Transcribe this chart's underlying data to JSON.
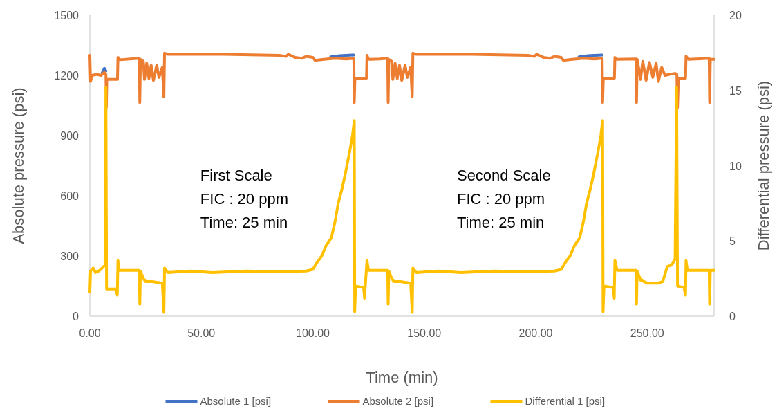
{
  "chart_data": {
    "type": "line",
    "xlabel": "Time (min)",
    "ylabel": "Absolute pressure (psi)",
    "y2label": "Differential pressure (psi)",
    "xlim": [
      0,
      280
    ],
    "xticks": [
      {
        "value": 0,
        "label": "0.00"
      },
      {
        "value": 50,
        "label": "50.00"
      },
      {
        "value": 100,
        "label": "100.00"
      },
      {
        "value": 150,
        "label": "150.00"
      },
      {
        "value": 200,
        "label": "200.00"
      },
      {
        "value": 250,
        "label": "250.00"
      }
    ],
    "ylim": [
      0,
      1500
    ],
    "yticks": [
      0,
      300,
      600,
      900,
      1200,
      1500
    ],
    "y2lim": [
      0,
      20
    ],
    "y2ticks": [
      0,
      5,
      10,
      15,
      20
    ],
    "grid": false,
    "legend": "bottom",
    "marker": "none",
    "line_style": "solid",
    "annotations": [
      "First Scale\nFIC : 20 ppm\nTime: 25 min",
      "Second Scale\nFIC : 20 ppm\nTime: 25 min"
    ],
    "series": [
      {
        "name": "Absolute 1 [psi]",
        "color": "#4472c4",
        "x": [
          5.5,
          6.5,
          7.2,
          8,
          108,
          112,
          115,
          118.4,
          120,
          219.4,
          223.4,
          226.4,
          229.8
        ],
        "values": [
          1212,
          1235,
          1222,
          null,
          1292,
          1298,
          1300,
          1302,
          null,
          1292,
          1298,
          1300,
          1302
        ]
      },
      {
        "name": "Absolute 2 [psi]",
        "color": "#ed7d31",
        "x": [
          0,
          0.3,
          1,
          3,
          5,
          6.5,
          7.2,
          7.4,
          7.6,
          12.4,
          12.6,
          13.5,
          22.2,
          22.4,
          22.7,
          24,
          24.5,
          25.5,
          26.5,
          27.5,
          28.5,
          30,
          31,
          32.5,
          33.2,
          33.5,
          35,
          60,
          85,
          88,
          89,
          92,
          95,
          97,
          100,
          101,
          105,
          110,
          115,
          118.4,
          118.6,
          118.9,
          124.1,
          124.3,
          125,
          126,
          130,
          133.6,
          133.8,
          134.1,
          135.4,
          135.9,
          136.9,
          137.9,
          138.9,
          139.9,
          141.4,
          142.4,
          143.9,
          144.6,
          144.9,
          146.4,
          171.4,
          196.4,
          199.4,
          200.4,
          203.4,
          206.4,
          208.4,
          211.4,
          212.4,
          216.4,
          221.4,
          226.4,
          229.8,
          230,
          230.3,
          235.3,
          235.5,
          236.5,
          245,
          245.2,
          245.5,
          247,
          248,
          249.5,
          251,
          252.5,
          254,
          255,
          256.5,
          258,
          260,
          262.5,
          263.3,
          263.6,
          264,
          267.2,
          267.4,
          268.5,
          277.8,
          278,
          278.3,
          280
        ],
        "values": [
          1300,
          1170,
          1200,
          1205,
          1200,
          1215,
          1205,
          1040,
          1180,
          1180,
          1290,
          1278,
          1285,
          1065,
          1280,
          1270,
          1180,
          1260,
          1185,
          1250,
          1175,
          1250,
          1190,
          1240,
          1093,
          1311,
          1305,
          1305,
          1300,
          1295,
          1305,
          1290,
          1285,
          1295,
          1290,
          1275,
          1280,
          1285,
          1282,
          1285,
          1065,
          1186,
          1186,
          1300,
          1280,
          1280,
          1282,
          1285,
          1065,
          1280,
          1270,
          1180,
          1260,
          1185,
          1250,
          1175,
          1250,
          1190,
          1240,
          1093,
          1311,
          1305,
          1305,
          1300,
          1295,
          1305,
          1290,
          1285,
          1295,
          1290,
          1275,
          1280,
          1285,
          1282,
          1285,
          1065,
          1186,
          1186,
          1290,
          1280,
          1282,
          1065,
          1280,
          1180,
          1270,
          1175,
          1265,
          1190,
          1260,
          1170,
          1240,
          1200,
          1205,
          1210,
          1205,
          1040,
          1186,
          1186,
          1296,
          1280,
          1285,
          1065,
          1280,
          1280
        ]
      },
      {
        "name": "Differential 1 [psi]",
        "color": "#ffc000",
        "axis": "y2",
        "x": [
          0,
          0.3,
          1.5,
          2.5,
          4,
          5.5,
          6.8,
          7.2,
          7.5,
          11.5,
          12.3,
          12.6,
          13,
          22.2,
          22.4,
          22.7,
          24,
          25,
          28,
          32.5,
          33.2,
          33.5,
          35,
          45,
          55,
          70,
          85,
          97,
          100,
          102,
          104,
          106,
          108.3,
          110,
          111.4,
          113,
          114.5,
          116.5,
          117.8,
          118.6,
          118.8,
          119.2,
          122.8,
          123.2,
          124.3,
          125,
          130,
          133.6,
          133.8,
          134.1,
          135.4,
          136.4,
          139.4,
          143.9,
          144.6,
          144.9,
          146.4,
          156.4,
          166.4,
          181.4,
          196.4,
          208.4,
          211.4,
          213.4,
          215.4,
          217.4,
          219.7,
          221.4,
          222.8,
          224.4,
          225.9,
          227.9,
          229.2,
          230,
          230.2,
          230.6,
          234.8,
          235.2,
          235.5,
          236.5,
          245,
          245.2,
          245.5,
          247,
          250,
          255,
          257,
          259,
          261,
          262.5,
          263.2,
          263.6,
          266.5,
          267.2,
          267.4,
          268,
          277.8,
          278,
          278.3,
          280
        ],
        "values": [
          1.6,
          3.0,
          3.2,
          2.9,
          3.0,
          3.2,
          3.4,
          15.2,
          1.8,
          1.8,
          1.4,
          3.7,
          3.05,
          3.05,
          0.8,
          3.0,
          2.5,
          2.3,
          2.3,
          2.2,
          0.25,
          3.2,
          2.9,
          3.0,
          2.9,
          3.0,
          2.95,
          3.0,
          3.1,
          3.6,
          4.0,
          4.7,
          5.2,
          6.3,
          7.5,
          8.4,
          9.4,
          10.9,
          12.0,
          13.0,
          0.3,
          2.0,
          1.9,
          1.2,
          3.7,
          3.05,
          3.05,
          3.05,
          0.8,
          3.0,
          2.5,
          2.3,
          2.3,
          2.2,
          0.25,
          3.2,
          2.9,
          3.0,
          2.9,
          3.0,
          2.95,
          3.0,
          3.1,
          3.6,
          4.0,
          4.7,
          5.2,
          6.3,
          7.5,
          8.4,
          9.4,
          10.9,
          12.0,
          13.0,
          0.3,
          2.0,
          1.9,
          1.2,
          3.7,
          3.05,
          3.05,
          0.8,
          3.0,
          2.4,
          2.2,
          2.2,
          2.3,
          3.3,
          3.4,
          3.8,
          15.2,
          2.0,
          1.9,
          1.4,
          3.7,
          3.05,
          3.05,
          0.8,
          3.05,
          3.05
        ]
      }
    ]
  }
}
